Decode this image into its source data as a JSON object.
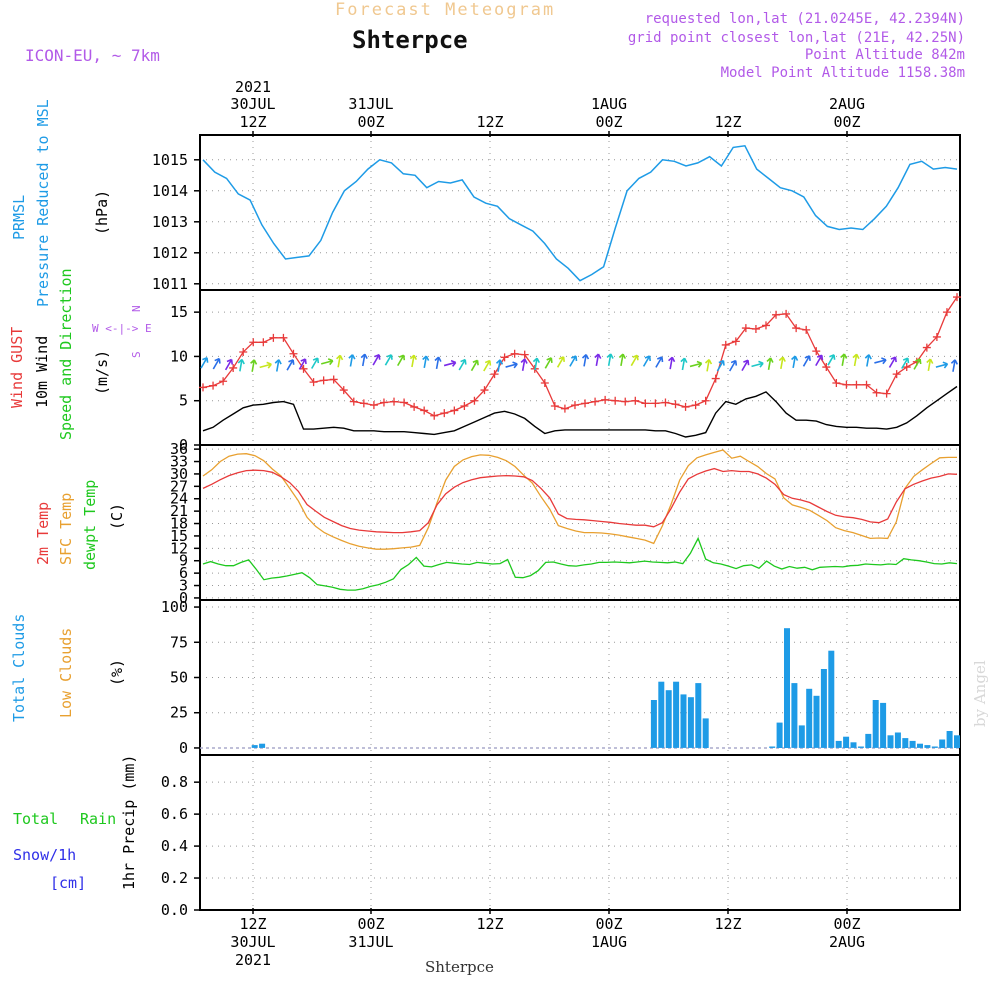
{
  "header": {
    "title_faded": "Forecast Meteogram",
    "location_title": "Shterpce",
    "model": "ICON-EU, ~ 7km",
    "requested": "requested lon,lat (21.0245E, 42.2394N)",
    "grid_point": "grid point closest lon,lat (21E, 42.25N)",
    "point_altitude": "Point Altitude 842m",
    "model_altitude": "Model Point Altitude 1158.38m"
  },
  "watermark": "by Angel",
  "footer_location": "Shterpce",
  "colors": {
    "pressure": "#1e9be6",
    "gust": "#e83a3a",
    "wind": "#000000",
    "wind_dir": "#1ec81e",
    "temp": "#e83a3a",
    "sfc_temp": "#e8a030",
    "dewpt": "#1ec81e",
    "total_clouds": "#1e9be6",
    "low_clouds": "#e8a030",
    "total_rain": "#1ec81e",
    "snow": "#2f2fe8",
    "header_purple": "#b25ae8"
  },
  "time_axis": {
    "top": [
      {
        "l1": "2021",
        "l2": "30JUL",
        "l3": "12Z"
      },
      {
        "l1": "",
        "l2": "31JUL",
        "l3": "00Z"
      },
      {
        "l1": "",
        "l2": "",
        "l3": "12Z"
      },
      {
        "l1": "",
        "l2": "1AUG",
        "l3": "00Z"
      },
      {
        "l1": "",
        "l2": "",
        "l3": "12Z"
      },
      {
        "l1": "",
        "l2": "2AUG",
        "l3": "00Z"
      }
    ],
    "bottom": [
      {
        "l1": "12Z",
        "l2": "30JUL",
        "l3": "2021"
      },
      {
        "l1": "00Z",
        "l2": "31JUL",
        "l3": ""
      },
      {
        "l1": "12Z",
        "l2": "",
        "l3": ""
      },
      {
        "l1": "00Z",
        "l2": "1AUG",
        "l3": ""
      },
      {
        "l1": "12Z",
        "l2": "",
        "l3": ""
      },
      {
        "l1": "00Z",
        "l2": "2AUG",
        "l3": ""
      }
    ]
  },
  "panel_labels": {
    "pressure": {
      "a": "PRMSL",
      "b": "Pressure Reduced to MSL",
      "unit": "(hPa)"
    },
    "wind": {
      "a": "Wind GUST",
      "b": "10m Wind",
      "c": "Speed and Direction",
      "unit": "(m/s)",
      "compass": "W <-|-> E",
      "compass_n": "N",
      "compass_s": "S"
    },
    "temp": {
      "a": "2m Temp",
      "b": "SFC Temp",
      "c": "dewpt Temp",
      "unit": "(C)"
    },
    "clouds": {
      "a": "Total Clouds",
      "b": "Low Clouds",
      "unit": "(%)"
    },
    "precip": {
      "a": "Total",
      "a2": "Rain",
      "b": "Snow/1h",
      "b2": "[cm]",
      "unit": "1hr Precip (mm)"
    }
  },
  "chart_data": [
    {
      "type": "line",
      "title": "PRMSL Pressure Reduced to MSL",
      "ylabel": "(hPa)",
      "ylim": [
        1010.8,
        1015.8
      ],
      "yticks": [
        1011,
        1012,
        1013,
        1014,
        1015
      ],
      "x_hours": [
        0,
        1,
        2,
        3,
        4,
        5,
        6,
        7,
        8,
        9,
        10,
        11,
        12,
        13,
        14,
        15,
        16,
        17,
        18,
        19,
        20,
        21,
        22,
        23,
        24,
        25,
        26,
        27,
        28,
        29,
        30,
        31,
        32,
        33,
        34,
        35,
        36,
        37,
        38,
        39,
        40,
        41,
        42,
        43,
        44,
        45,
        46,
        47,
        48,
        49,
        50,
        51,
        52,
        53,
        54,
        55,
        56,
        57,
        58,
        59,
        60,
        61,
        62,
        63,
        64
      ],
      "series": [
        {
          "name": "PRMSL",
          "values": [
            1015.0,
            1014.6,
            1014.4,
            1013.9,
            1013.7,
            1012.9,
            1012.3,
            1011.8,
            1011.85,
            1011.9,
            1012.4,
            1013.3,
            1014.0,
            1014.3,
            1014.7,
            1015.0,
            1014.9,
            1014.55,
            1014.5,
            1014.1,
            1014.3,
            1014.25,
            1014.35,
            1013.8,
            1013.6,
            1013.5,
            1013.1,
            1012.9,
            1012.7,
            1012.3,
            1011.8,
            1011.5,
            1011.1,
            1011.3,
            1011.55,
            1012.8,
            1014.0,
            1014.4,
            1014.6,
            1015.0,
            1014.95,
            1014.8,
            1014.9,
            1015.1,
            1014.8,
            1015.4,
            1015.45,
            1014.7,
            1014.4,
            1014.1,
            1014.0,
            1013.8,
            1013.2,
            1012.85,
            1012.75,
            1012.8,
            1012.75,
            1013.1,
            1013.5,
            1014.1,
            1014.85,
            1014.95,
            1014.7,
            1014.75,
            1014.7
          ]
        }
      ]
    },
    {
      "type": "line",
      "title": "Wind GUST / 10m Wind",
      "ylabel": "(m/s)",
      "ylim": [
        0,
        17.5
      ],
      "yticks": [
        0,
        5,
        10,
        15
      ],
      "series": [
        {
          "name": "Wind GUST",
          "values": [
            6.5,
            6.7,
            7.2,
            8.7,
            10.5,
            11.6,
            11.6,
            12.1,
            12.1,
            10.3,
            8.6,
            7.1,
            7.3,
            7.4,
            6.2,
            4.9,
            4.7,
            4.5,
            4.8,
            4.9,
            4.8,
            4.3,
            3.9,
            3.3,
            3.6,
            3.9,
            4.4,
            5.0,
            6.2,
            8.0,
            9.9,
            10.3,
            10.2,
            8.6,
            7.0,
            4.4,
            4.1,
            4.5,
            4.7,
            4.9,
            5.1,
            5.0,
            4.9,
            5.0,
            4.7,
            4.7,
            4.8,
            4.6,
            4.3,
            4.5,
            5.0,
            7.5,
            11.3,
            11.7,
            13.2,
            13.1,
            13.5,
            14.7,
            14.8,
            13.2,
            13.0,
            10.6,
            8.8,
            7.0,
            6.8,
            6.8,
            6.8,
            5.9,
            5.8,
            8.0,
            8.8,
            9.4,
            11.0,
            12.2,
            15.0,
            16.7
          ]
        },
        {
          "name": "10m Wind",
          "values": [
            1.6,
            2.0,
            2.8,
            3.5,
            4.2,
            4.5,
            4.6,
            4.8,
            4.9,
            4.6,
            1.8,
            1.8,
            1.9,
            2.0,
            1.9,
            1.6,
            1.6,
            1.6,
            1.5,
            1.5,
            1.5,
            1.4,
            1.3,
            1.2,
            1.4,
            1.6,
            2.1,
            2.6,
            3.1,
            3.6,
            3.8,
            3.5,
            3.0,
            2.1,
            1.3,
            1.6,
            1.7,
            1.7,
            1.7,
            1.7,
            1.7,
            1.7,
            1.7,
            1.7,
            1.7,
            1.6,
            1.6,
            1.3,
            0.9,
            1.1,
            1.4,
            3.6,
            4.9,
            4.6,
            5.2,
            5.5,
            6.0,
            4.9,
            3.6,
            2.8,
            2.8,
            2.7,
            2.3,
            2.1,
            2.0,
            2.0,
            1.9,
            1.9,
            1.8,
            2.0,
            2.5,
            3.3,
            4.2,
            5.0,
            5.8,
            6.6
          ]
        }
      ]
    },
    {
      "type": "line",
      "title": "2m Temp / SFC Temp / dewpt Temp",
      "ylabel": "(C)",
      "ylim": [
        -0.5,
        37
      ],
      "yticks": [
        0,
        3,
        6,
        9,
        12,
        15,
        18,
        21,
        24,
        27,
        30,
        33,
        36
      ],
      "series": [
        {
          "name": "2m Temp",
          "values": [
            26.5,
            27.5,
            28.6,
            29.6,
            30.3,
            30.8,
            30.9,
            30.8,
            30.4,
            29.3,
            27.9,
            25.8,
            22.6,
            21.0,
            19.5,
            18.5,
            17.5,
            16.8,
            16.4,
            16.2,
            16.0,
            15.9,
            15.8,
            15.8,
            16.0,
            16.3,
            18.2,
            22.5,
            25.2,
            26.8,
            27.9,
            28.6,
            29.1,
            29.3,
            29.5,
            29.6,
            29.5,
            29.3,
            28.4,
            26.5,
            24.2,
            20.3,
            19.2,
            19.0,
            18.9,
            18.7,
            18.5,
            18.3,
            18.0,
            17.8,
            17.6,
            17.6,
            17.2,
            18.2,
            21.6,
            25.6,
            28.8,
            29.9,
            30.7,
            31.3,
            30.6,
            30.8,
            30.6,
            30.6,
            30.0,
            29.0,
            27.5,
            25.0,
            24.1,
            23.7,
            23.1,
            22.0,
            20.9,
            20.0,
            19.6,
            19.4,
            19.0,
            18.4,
            18.2,
            19.1,
            23.2,
            26.4,
            27.5,
            28.3,
            29.0,
            29.4,
            30.0,
            29.9
          ]
        },
        {
          "name": "SFC Temp",
          "values": [
            29.5,
            31.0,
            33.0,
            34.3,
            34.8,
            34.9,
            34.4,
            33.2,
            31.2,
            29.5,
            26.5,
            23.5,
            19.5,
            17.3,
            15.8,
            14.8,
            13.9,
            13.1,
            12.5,
            12.1,
            11.8,
            11.8,
            11.9,
            12.1,
            12.3,
            12.7,
            17.0,
            23.0,
            28.5,
            31.8,
            33.4,
            34.2,
            34.6,
            34.5,
            34.0,
            33.2,
            31.8,
            29.7,
            27.8,
            24.5,
            21.5,
            17.5,
            16.8,
            16.2,
            15.8,
            15.8,
            15.7,
            15.5,
            15.2,
            14.8,
            14.4,
            14.0,
            13.2,
            17.4,
            22.6,
            28.5,
            32.0,
            33.9,
            34.6,
            35.2,
            35.8,
            33.8,
            34.3,
            33.0,
            31.8,
            30.1,
            28.8,
            24.2,
            22.5,
            21.9,
            21.2,
            20.0,
            18.7,
            17.0,
            16.3,
            15.8,
            15.1,
            14.4,
            14.5,
            14.4,
            18.4,
            26.5,
            29.4,
            31.0,
            32.5,
            33.9,
            34.0,
            34.0
          ]
        },
        {
          "name": "dewpt Temp",
          "values": [
            8.2,
            8.8,
            8.2,
            7.8,
            7.8,
            8.6,
            9.2,
            6.9,
            4.4,
            4.8,
            5.0,
            5.3,
            5.7,
            6.1,
            4.9,
            3.2,
            2.9,
            2.6,
            2.1,
            1.9,
            1.9,
            2.2,
            2.8,
            3.2,
            3.8,
            4.6,
            6.9,
            8.1,
            9.8,
            7.7,
            7.5,
            8.1,
            8.6,
            8.4,
            8.2,
            8.1,
            8.6,
            8.4,
            8.2,
            8.3,
            9.3,
            5.0,
            4.9,
            5.4,
            6.6,
            8.6,
            8.7,
            8.2,
            7.8,
            7.7,
            8.0,
            8.2,
            8.6,
            8.6,
            8.7,
            8.6,
            8.5,
            8.7,
            8.9,
            8.7,
            8.6,
            8.5,
            8.7,
            8.3,
            10.8,
            14.4,
            9.4,
            8.5,
            8.2,
            7.7,
            7.1,
            7.8,
            8.0,
            7.2,
            8.9,
            7.7,
            7.0,
            7.6,
            7.2,
            7.4,
            6.8,
            7.4,
            7.5,
            7.6,
            7.5,
            7.8,
            7.9,
            8.2,
            8.1,
            8.0,
            8.2,
            8.1,
            9.5,
            9.2,
            9.0,
            8.7,
            8.3,
            8.2,
            8.5,
            8.3
          ]
        }
      ]
    },
    {
      "type": "bar",
      "title": "Total Clouds / Low Clouds",
      "ylabel": "(%)",
      "ylim": [
        -5,
        105
      ],
      "yticks": [
        0,
        25,
        50,
        75,
        100
      ],
      "series": [
        {
          "name": "Total Clouds",
          "values": [
            0,
            0,
            0,
            0,
            0,
            0,
            0,
            2,
            3,
            0,
            0,
            0,
            0,
            0,
            0,
            0,
            0,
            0,
            0,
            0,
            0,
            0,
            0,
            0,
            0,
            0,
            0,
            0,
            0,
            0,
            0,
            0,
            0,
            0,
            0,
            0,
            0,
            0,
            0,
            0,
            0,
            0,
            0,
            0,
            0,
            0,
            0,
            0,
            0,
            0,
            0,
            0,
            0,
            0,
            0,
            0,
            0,
            0,
            0,
            0,
            0,
            34,
            47,
            41,
            47,
            38,
            36,
            46,
            21,
            0,
            0,
            0,
            0,
            0,
            0,
            0,
            0,
            1,
            18,
            85,
            46,
            16,
            42,
            37,
            56,
            69,
            5,
            8,
            4,
            1,
            10,
            34,
            32,
            9,
            11,
            7,
            5,
            3,
            2,
            1,
            6,
            12,
            9
          ]
        }
      ]
    },
    {
      "type": "bar",
      "title": "1hr Precip (mm)",
      "ylabel": "1hr Precip (mm)",
      "ylim": [
        0,
        0.97
      ],
      "yticks": [
        0,
        0.2,
        0.4,
        0.6,
        0.8
      ],
      "series": [
        {
          "name": "Total Rain",
          "values": []
        },
        {
          "name": "Snow/1h",
          "values": []
        }
      ]
    }
  ]
}
